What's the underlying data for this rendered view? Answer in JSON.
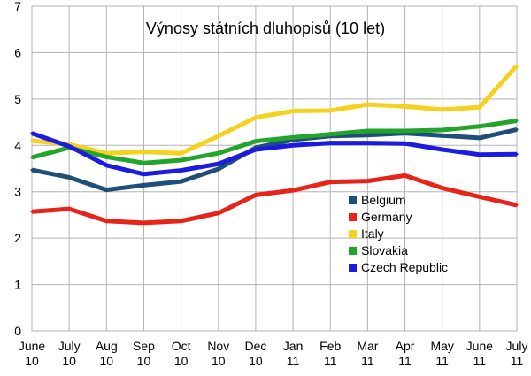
{
  "chart_data": {
    "type": "line",
    "title": "Výnosy státních dluhopisů (10 let)",
    "xlabel": "",
    "ylabel": "",
    "ylim": [
      0,
      7
    ],
    "yticks": [
      0,
      1,
      2,
      3,
      4,
      5,
      6,
      7
    ],
    "grid": true,
    "legend_position": "right-middle",
    "categories": [
      {
        "month": "June",
        "year": "10"
      },
      {
        "month": "July",
        "year": "10"
      },
      {
        "month": "Aug",
        "year": "10"
      },
      {
        "month": "Sep",
        "year": "10"
      },
      {
        "month": "Oct",
        "year": "10"
      },
      {
        "month": "Nov",
        "year": "10"
      },
      {
        "month": "Dec",
        "year": "10"
      },
      {
        "month": "Jan",
        "year": "11"
      },
      {
        "month": "Feb",
        "year": "11"
      },
      {
        "month": "Mar",
        "year": "11"
      },
      {
        "month": "Apr",
        "year": "11"
      },
      {
        "month": "May",
        "year": "11"
      },
      {
        "month": "June",
        "year": "11"
      },
      {
        "month": "July",
        "year": "11"
      }
    ],
    "series": [
      {
        "name": "Belgium",
        "color": "#1f4e79",
        "values": [
          3.47,
          3.31,
          3.04,
          3.14,
          3.22,
          3.49,
          3.95,
          4.12,
          4.2,
          4.22,
          4.26,
          4.21,
          4.16,
          4.34
        ]
      },
      {
        "name": "Germany",
        "color": "#e8231a",
        "values": [
          2.57,
          2.63,
          2.37,
          2.33,
          2.37,
          2.54,
          2.93,
          3.03,
          3.21,
          3.23,
          3.35,
          3.08,
          2.89,
          2.71
        ]
      },
      {
        "name": "Italy",
        "color": "#f4d21f",
        "values": [
          4.1,
          4.02,
          3.83,
          3.86,
          3.83,
          4.2,
          4.6,
          4.74,
          4.75,
          4.88,
          4.84,
          4.77,
          4.82,
          5.72
        ]
      },
      {
        "name": "Slovakia",
        "color": "#22a52a",
        "values": [
          3.74,
          3.95,
          3.75,
          3.62,
          3.68,
          3.83,
          4.09,
          4.17,
          4.24,
          4.31,
          4.31,
          4.33,
          4.41,
          4.53
        ]
      },
      {
        "name": "Czech Republic",
        "color": "#1c1ce0",
        "values": [
          4.26,
          3.98,
          3.57,
          3.38,
          3.46,
          3.6,
          3.91,
          4.0,
          4.05,
          4.05,
          4.04,
          3.91,
          3.8,
          3.81
        ]
      }
    ]
  }
}
